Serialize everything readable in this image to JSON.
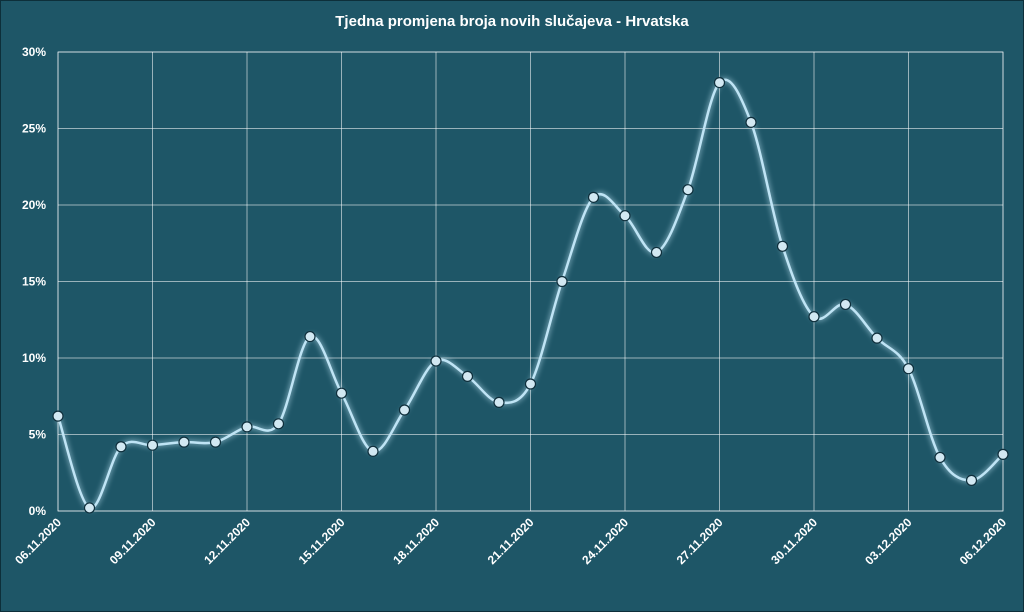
{
  "chart_data": {
    "type": "line",
    "title": "Tjedna promjena broja novih slučajeva - Hrvatska",
    "xlabel": "",
    "ylabel": "",
    "ylim": [
      0,
      30
    ],
    "y_ticks": [
      "0%",
      "5%",
      "10%",
      "15%",
      "20%",
      "25%",
      "30%"
    ],
    "y_tick_values": [
      0,
      5,
      10,
      15,
      20,
      25,
      30
    ],
    "x_tick_labels": [
      "06.11.2020",
      "09.11.2020",
      "12.11.2020",
      "15.11.2020",
      "18.11.2020",
      "21.11.2020",
      "24.11.2020",
      "27.11.2020",
      "30.11.2020",
      "03.12.2020",
      "06.12.2020"
    ],
    "x_tick_every": 3,
    "x": [
      "06.11.2020",
      "07.11.2020",
      "08.11.2020",
      "09.11.2020",
      "10.11.2020",
      "11.11.2020",
      "12.11.2020",
      "13.11.2020",
      "14.11.2020",
      "15.11.2020",
      "16.11.2020",
      "17.11.2020",
      "18.11.2020",
      "19.11.2020",
      "20.11.2020",
      "21.11.2020",
      "22.11.2020",
      "23.11.2020",
      "24.11.2020",
      "25.11.2020",
      "26.11.2020",
      "27.11.2020",
      "28.11.2020",
      "29.11.2020",
      "30.11.2020",
      "01.12.2020",
      "02.12.2020",
      "03.12.2020",
      "04.12.2020",
      "05.12.2020",
      "06.12.2020"
    ],
    "series": [
      {
        "values": [
          6.2,
          0.2,
          4.2,
          4.3,
          4.5,
          4.5,
          5.5,
          5.7,
          11.4,
          7.7,
          3.9,
          6.6,
          9.8,
          8.8,
          7.1,
          8.3,
          15.0,
          20.5,
          19.3,
          16.9,
          21.0,
          28.0,
          25.4,
          17.3,
          12.7,
          13.5,
          11.3,
          9.3,
          3.5,
          2.0,
          3.7
        ]
      }
    ],
    "grid": true,
    "colors": {
      "background": "#1e5667",
      "grid": "#ffffff",
      "line": "#bfe4f5",
      "marker_fill": "#d2e8f2",
      "marker_edge": "#0f2f3c",
      "text": "#ffffff"
    }
  }
}
